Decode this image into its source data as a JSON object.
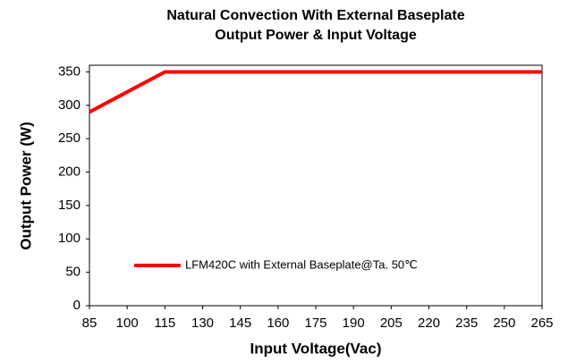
{
  "chart_data": {
    "type": "line",
    "title": [
      "Natural Convection With External Baseplate",
      "Output Power & Input Voltage"
    ],
    "x_label": "Input Voltage(Vac)",
    "y_label": "Output Power (W)",
    "x": [
      85,
      115,
      265
    ],
    "series": [
      {
        "name": "LFM420C with External Baseplate@Ta. 50℃",
        "color": "#ff0000",
        "values": [
          290,
          350,
          350
        ]
      }
    ],
    "xlim": [
      85,
      265
    ],
    "xticks": [
      85,
      100,
      115,
      130,
      145,
      160,
      175,
      190,
      205,
      220,
      235,
      250,
      265
    ],
    "ylim": [
      0,
      360
    ],
    "yticks": [
      0,
      50,
      100,
      150,
      200,
      250,
      300,
      350
    ],
    "grid": false,
    "legend": "lower left"
  }
}
